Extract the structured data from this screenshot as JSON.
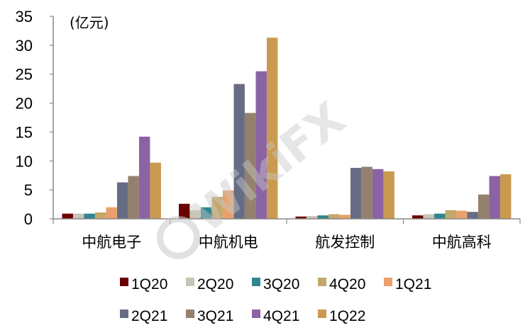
{
  "chart_data": {
    "type": "bar",
    "unit_label": "(亿元)",
    "categories": [
      "中航电子",
      "中航机电",
      "航发控制",
      "中航高科"
    ],
    "ylim": [
      0,
      35
    ],
    "yticks": [
      0,
      5,
      10,
      15,
      20,
      25,
      30,
      35
    ],
    "grid": false,
    "legend_position": "bottom",
    "series": [
      {
        "name": "1Q20",
        "color": "#6b0000",
        "values": [
          0.9,
          2.6,
          0.4,
          0.6
        ]
      },
      {
        "name": "2Q20",
        "color": "#c8c5b4",
        "values": [
          0.9,
          1.5,
          0.5,
          0.8
        ]
      },
      {
        "name": "3Q20",
        "color": "#2f8590",
        "values": [
          0.9,
          2.0,
          0.6,
          0.9
        ]
      },
      {
        "name": "4Q20",
        "color": "#c4a66a",
        "values": [
          1.1,
          3.8,
          0.8,
          1.5
        ]
      },
      {
        "name": "1Q21",
        "color": "#e9a06a",
        "values": [
          2.0,
          4.9,
          0.7,
          1.4
        ]
      },
      {
        "name": "2Q21",
        "color": "#666c83",
        "values": [
          6.3,
          23.3,
          8.8,
          1.2
        ]
      },
      {
        "name": "3Q21",
        "color": "#93816e",
        "values": [
          7.4,
          18.3,
          9.0,
          4.2
        ]
      },
      {
        "name": "4Q21",
        "color": "#8a63a3",
        "values": [
          14.2,
          25.5,
          8.6,
          7.4
        ]
      },
      {
        "name": "1Q22",
        "color": "#c99a4f",
        "values": [
          9.7,
          31.3,
          8.2,
          7.7
        ]
      }
    ]
  },
  "watermark": {
    "text": "WikiFX",
    "icon": "wikifx-logo-icon"
  }
}
